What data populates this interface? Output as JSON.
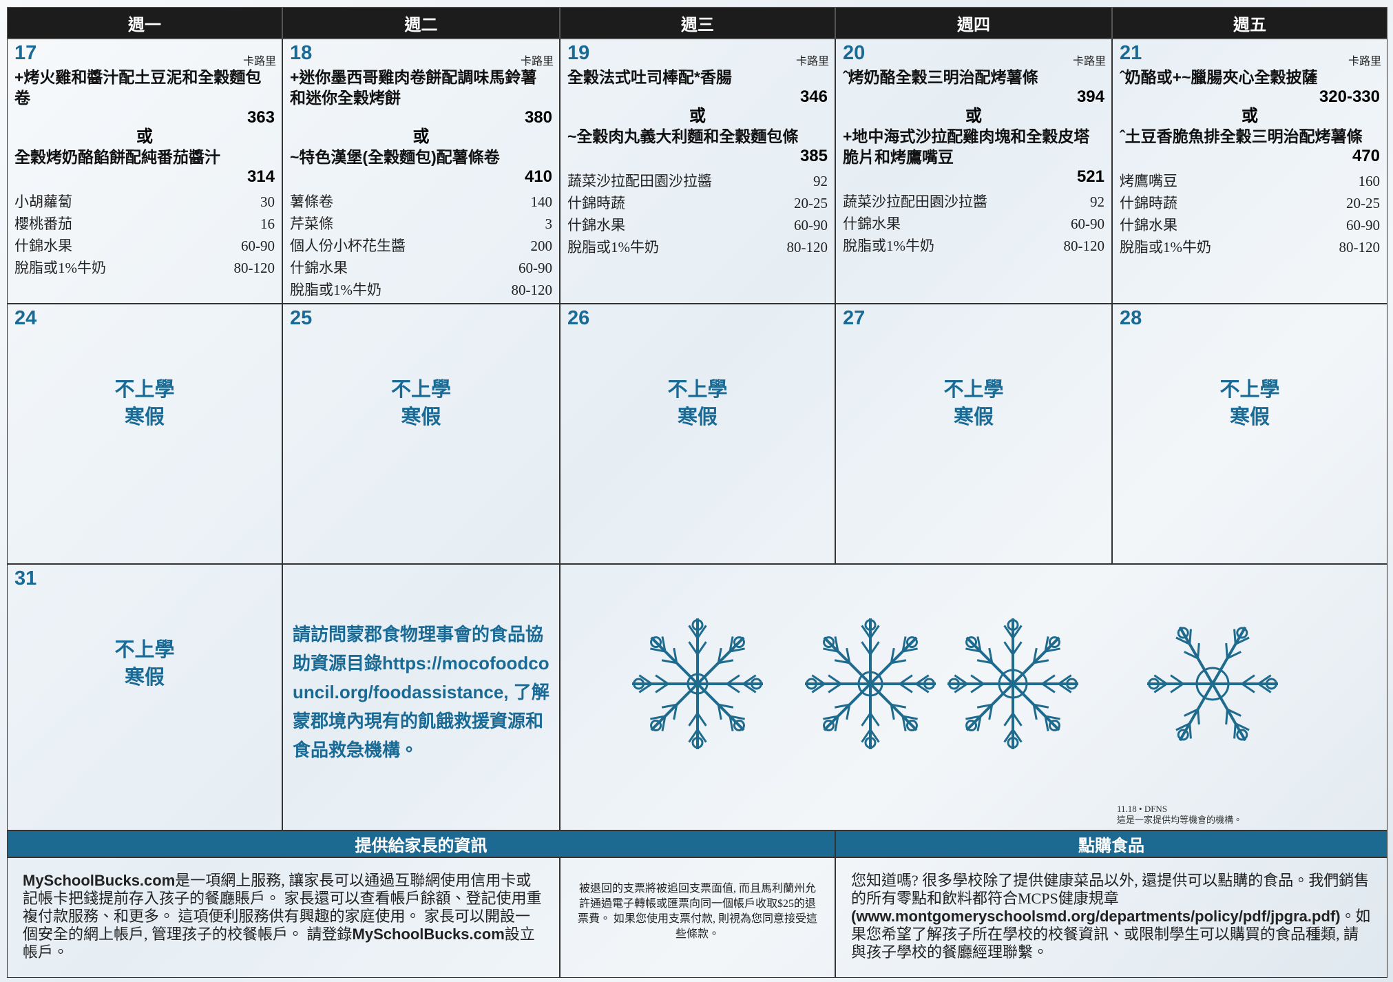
{
  "header": {
    "days": [
      "週一",
      "週二",
      "週三",
      "週四",
      "週五"
    ]
  },
  "week1": [
    {
      "date": "17",
      "calorie_label": "卡路里",
      "or": "或",
      "entrees": [
        {
          "name": "+烤火雞和醬汁配土豆泥和全穀麵包卷",
          "calories": "363"
        },
        {
          "name": "全穀烤奶酪餡餅配純番茄醬汁",
          "calories": "314"
        }
      ],
      "sides": [
        [
          "小胡蘿蔔",
          "30"
        ],
        [
          "櫻桃番茄",
          "16"
        ],
        [
          "什錦水果",
          "60-90"
        ],
        [
          "脫脂或1%牛奶",
          "80-120"
        ]
      ]
    },
    {
      "date": "18",
      "calorie_label": "卡路里",
      "or": "或",
      "entrees": [
        {
          "name": "+迷你墨西哥雞肉卷餅配調味馬鈴薯和迷你全穀烤餅",
          "calories": "380"
        },
        {
          "name": "~特色漢堡(全穀麵包)配薯條卷",
          "calories": "410"
        }
      ],
      "sides": [
        [
          "薯條卷",
          "140"
        ],
        [
          "芹菜條",
          "3"
        ],
        [
          "個人份小杯花生醬",
          "200"
        ],
        [
          "什錦水果",
          "60-90"
        ],
        [
          "脫脂或1%牛奶",
          "80-120"
        ]
      ]
    },
    {
      "date": "19",
      "calorie_label": "卡路里",
      "or": "或",
      "entrees": [
        {
          "name": "全穀法式吐司棒配*香腸",
          "calories": "346"
        },
        {
          "name": "~全穀肉丸義大利麵和全穀麵包條",
          "calories": "385"
        }
      ],
      "sides": [
        [
          "蔬菜沙拉配田園沙拉醬",
          "92"
        ],
        [
          "什錦時蔬",
          "20-25"
        ],
        [
          "什錦水果",
          "60-90"
        ],
        [
          "脫脂或1%牛奶",
          "80-120"
        ]
      ]
    },
    {
      "date": "20",
      "calorie_label": "卡路里",
      "or": "或",
      "entrees": [
        {
          "name": "ˆ烤奶酪全穀三明治配烤薯條",
          "calories": "394"
        },
        {
          "name": "+地中海式沙拉配雞肉塊和全穀皮塔脆片和烤鷹嘴豆",
          "calories": "521"
        }
      ],
      "sides": [
        [
          "蔬菜沙拉配田園沙拉醬",
          "92"
        ],
        [
          "什錦水果",
          "60-90"
        ],
        [
          "脫脂或1%牛奶",
          "80-120"
        ]
      ]
    },
    {
      "date": "21",
      "calorie_label": "卡路里",
      "or": "或",
      "entrees": [
        {
          "name": "ˆ奶酪或+~臘腸夾心全穀披薩",
          "calories": "320-330"
        },
        {
          "name": "ˆ土豆香脆魚排全穀三明治配烤薯條",
          "calories": "470"
        }
      ],
      "sides": [
        [
          "烤鷹嘴豆",
          "160"
        ],
        [
          "什錦時蔬",
          "20-25"
        ],
        [
          "什錦水果",
          "60-90"
        ],
        [
          "脫脂或1%牛奶",
          "80-120"
        ]
      ]
    }
  ],
  "week2": [
    {
      "date": "24",
      "lines": [
        "不上學",
        "寒假"
      ]
    },
    {
      "date": "25",
      "lines": [
        "不上學",
        "寒假"
      ]
    },
    {
      "date": "26",
      "lines": [
        "不上學",
        "寒假"
      ]
    },
    {
      "date": "27",
      "lines": [
        "不上學",
        "寒假"
      ]
    },
    {
      "date": "28",
      "lines": [
        "不上學",
        "寒假"
      ]
    }
  ],
  "week3": {
    "day": {
      "date": "31",
      "lines": [
        "不上學",
        "寒假"
      ]
    },
    "info": "請訪問蒙郡食物理事會的食品協助資源目錄https://mocofoodcouncil.org/foodassistance, 了解蒙郡境內現有的飢餓救援資源和食品救急機構。",
    "footer": {
      "code": "11.18 • DFNS",
      "statement": "這是一家提供均等機會的機構。"
    }
  },
  "bottom": {
    "parents_title": "提供給家長的資訊",
    "order_title": "點購食品",
    "parents": [
      "MySchoolBucks.com",
      "是一項網上服務, 讓家長可以通過互聯網使用信用卡或記帳卡把錢提前存入孩子的餐廳賬戶。 家長還可以查看帳戶餘額、登記使用重複付款服務、和更多。 這項便利服務供有興趣的家庭使用。 家長可以開設一個安全的網上帳戶, 管理孩子的校餐帳戶。 請登錄",
      "MySchoolBucks.com",
      "設立帳戶。"
    ],
    "checks": "被退回的支票將被追回支票面值, 而且馬利蘭州允許通過電子轉帳或匯票向同一個帳戶收取$25的退票費。 如果您使用支票付款, 則視為您同意接受這些條款。",
    "order": [
      "您知道嗎? 很多學校除了提供健康菜品以外, 還提供可以點購的食品。我們銷售的所有零點和飲料都符合MCPS健康規章",
      "(www.montgomeryschoolsmd.org/departments/policy/pdf/jpgra.pdf)",
      "。如果您希望了解孩子所在學校的校餐資訊、或限制學生可以購買的食品種類, 請與孩子學校的餐廳經理聯繫。"
    ]
  }
}
